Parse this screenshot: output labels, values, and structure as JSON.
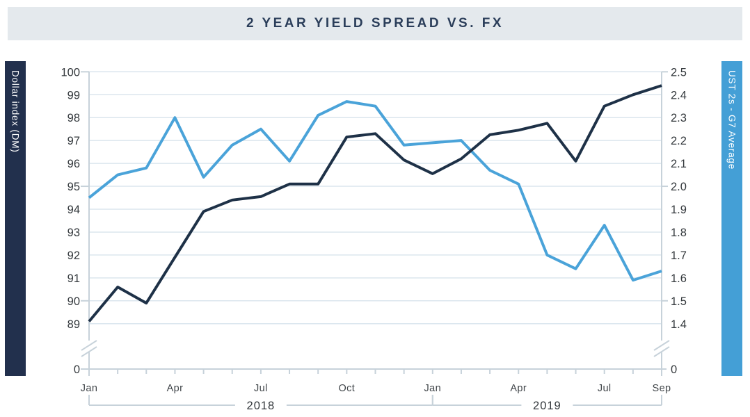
{
  "title": "2 YEAR YIELD SPREAD VS. FX",
  "left_axis": {
    "label": "Dollar index (DM)",
    "tick_labels": [
      "100",
      "99",
      "98",
      "97",
      "96",
      "95",
      "94",
      "93",
      "92",
      "91",
      "90",
      "89"
    ],
    "zero_label": "0",
    "major_tick_rows": [
      0,
      5,
      10
    ],
    "has_axis_break": true
  },
  "right_axis": {
    "label": "UST 2s - G7 Average",
    "tick_labels": [
      "2.5",
      "2.4",
      "2.3",
      "2.2",
      "2.1",
      "2.0",
      "1.9",
      "1.8",
      "1.7",
      "1.6",
      "1.5",
      "1.4"
    ],
    "zero_label": "0",
    "major_tick_rows": [
      0,
      5,
      10
    ],
    "has_axis_break": true
  },
  "x_axis": {
    "month_tick_labels": [
      {
        "label": "Jan",
        "index": 0
      },
      {
        "label": "Apr",
        "index": 3
      },
      {
        "label": "Jul",
        "index": 6
      },
      {
        "label": "Oct",
        "index": 9
      },
      {
        "label": "Jan",
        "index": 12
      },
      {
        "label": "Apr",
        "index": 15
      },
      {
        "label": "Jul",
        "index": 18
      },
      {
        "label": "Sep",
        "index": 20
      }
    ],
    "year_groups": [
      {
        "label": "2018",
        "from_index": 0,
        "to_index": 12
      },
      {
        "label": "2019",
        "from_index": 12,
        "to_index": 20
      }
    ]
  },
  "chart_data": {
    "type": "line",
    "title": "2 YEAR YIELD SPREAD VS. FX",
    "categories": [
      "Jan 2018",
      "Feb 2018",
      "Mar 2018",
      "Apr 2018",
      "May 2018",
      "Jun 2018",
      "Jul 2018",
      "Aug 2018",
      "Sep 2018",
      "Oct 2018",
      "Nov 2018",
      "Dec 2018",
      "Jan 2019",
      "Feb 2019",
      "Mar 2019",
      "Apr 2019",
      "May 2019",
      "Jun 2019",
      "Jul 2019",
      "Aug 2019",
      "Sep 2019"
    ],
    "grid": "horizontal",
    "legend_position": "axis-bars",
    "left_ylabel": "Dollar index (DM)",
    "right_ylabel": "UST 2s - G7 Average",
    "left_ylim": [
      89,
      100
    ],
    "right_ylim": [
      1.4,
      2.5
    ],
    "axis_break_to_zero": true,
    "series": [
      {
        "name": "Dollar index (DM)",
        "axis": "left",
        "color_key": "navy",
        "values": [
          89.1,
          90.6,
          89.9,
          91.9,
          93.9,
          94.4,
          94.55,
          95.1,
          95.1,
          97.15,
          97.3,
          96.15,
          95.55,
          96.2,
          97.25,
          97.45,
          97.75,
          96.1,
          98.5,
          99.0,
          99.4
        ]
      },
      {
        "name": "UST 2s - G7 Average",
        "axis": "right",
        "color_key": "blue",
        "values": [
          1.95,
          2.05,
          2.08,
          2.3,
          2.04,
          2.18,
          2.25,
          2.11,
          2.31,
          2.37,
          2.35,
          2.18,
          2.19,
          2.2,
          2.07,
          2.01,
          1.7,
          1.64,
          1.83,
          1.59,
          1.63
        ]
      }
    ]
  },
  "colors": {
    "banner_bg": "#e4e9ed",
    "title_text": "#2b3e5a",
    "navy": "#1e3147",
    "navy_bar": "#22304d",
    "blue": "#4aa3d9",
    "blue_bar": "#449fd6",
    "gridline": "#dbe6ee",
    "axis": "#c7d2da",
    "tick_text": "#33383c",
    "month_text": "#41464a"
  }
}
